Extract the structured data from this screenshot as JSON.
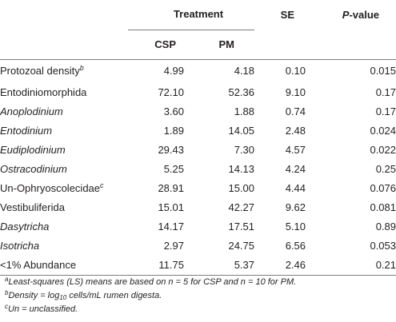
{
  "header": {
    "treatment": "Treatment",
    "se": "SE",
    "pvalue_italic": "P",
    "pvalue_rest": "-value",
    "csp": "CSP",
    "pm": "PM"
  },
  "rows": [
    {
      "name": "Protozoal density",
      "sup": "b",
      "italic": false,
      "csp": "4.99",
      "pm": "4.18",
      "se": "0.10",
      "p": "0.015"
    },
    {
      "name": "Entodiniomorphida",
      "sup": "",
      "italic": false,
      "csp": "72.10",
      "pm": "52.36",
      "se": "9.10",
      "p": "0.17"
    },
    {
      "name": "Anoplodinium",
      "sup": "",
      "italic": true,
      "csp": "3.60",
      "pm": "1.88",
      "se": "0.74",
      "p": "0.17"
    },
    {
      "name": "Entodinium",
      "sup": "",
      "italic": true,
      "csp": "1.89",
      "pm": "14.05",
      "se": "2.48",
      "p": "0.024"
    },
    {
      "name": "Eudiplodinium",
      "sup": "",
      "italic": true,
      "csp": "29.43",
      "pm": "7.30",
      "se": "4.57",
      "p": "0.022"
    },
    {
      "name": "Ostracodinium",
      "sup": "",
      "italic": true,
      "csp": "5.25",
      "pm": "14.13",
      "se": "4.24",
      "p": "0.25"
    },
    {
      "name": "Un-Ophryoscolecidae",
      "sup": "c",
      "italic": false,
      "csp": "28.91",
      "pm": "15.00",
      "se": "4.44",
      "p": "0.076"
    },
    {
      "name": "Vestibuliferida",
      "sup": "",
      "italic": false,
      "csp": "15.01",
      "pm": "42.27",
      "se": "9.62",
      "p": "0.081"
    },
    {
      "name": "Dasytricha",
      "sup": "",
      "italic": true,
      "csp": "14.17",
      "pm": "17.51",
      "se": "5.10",
      "p": "0.89"
    },
    {
      "name": "Isotricha",
      "sup": "",
      "italic": true,
      "csp": "2.97",
      "pm": "24.75",
      "se": "6.56",
      "p": "0.053"
    },
    {
      "name": "<1% Abundance",
      "sup": "",
      "italic": false,
      "csp": "11.75",
      "pm": "5.37",
      "se": "2.46",
      "p": "0.21"
    }
  ],
  "footnotes": {
    "a_mark": "a",
    "a_text": "Least-squares (LS) means are based on n = 5 for CSP and n = 10 for PM.",
    "b_mark": "b",
    "b_pre": "Density = log",
    "b_sub": "10",
    "b_post": " cells/mL rumen digesta.",
    "c_mark": "c",
    "c_text": "Un = unclassified."
  }
}
